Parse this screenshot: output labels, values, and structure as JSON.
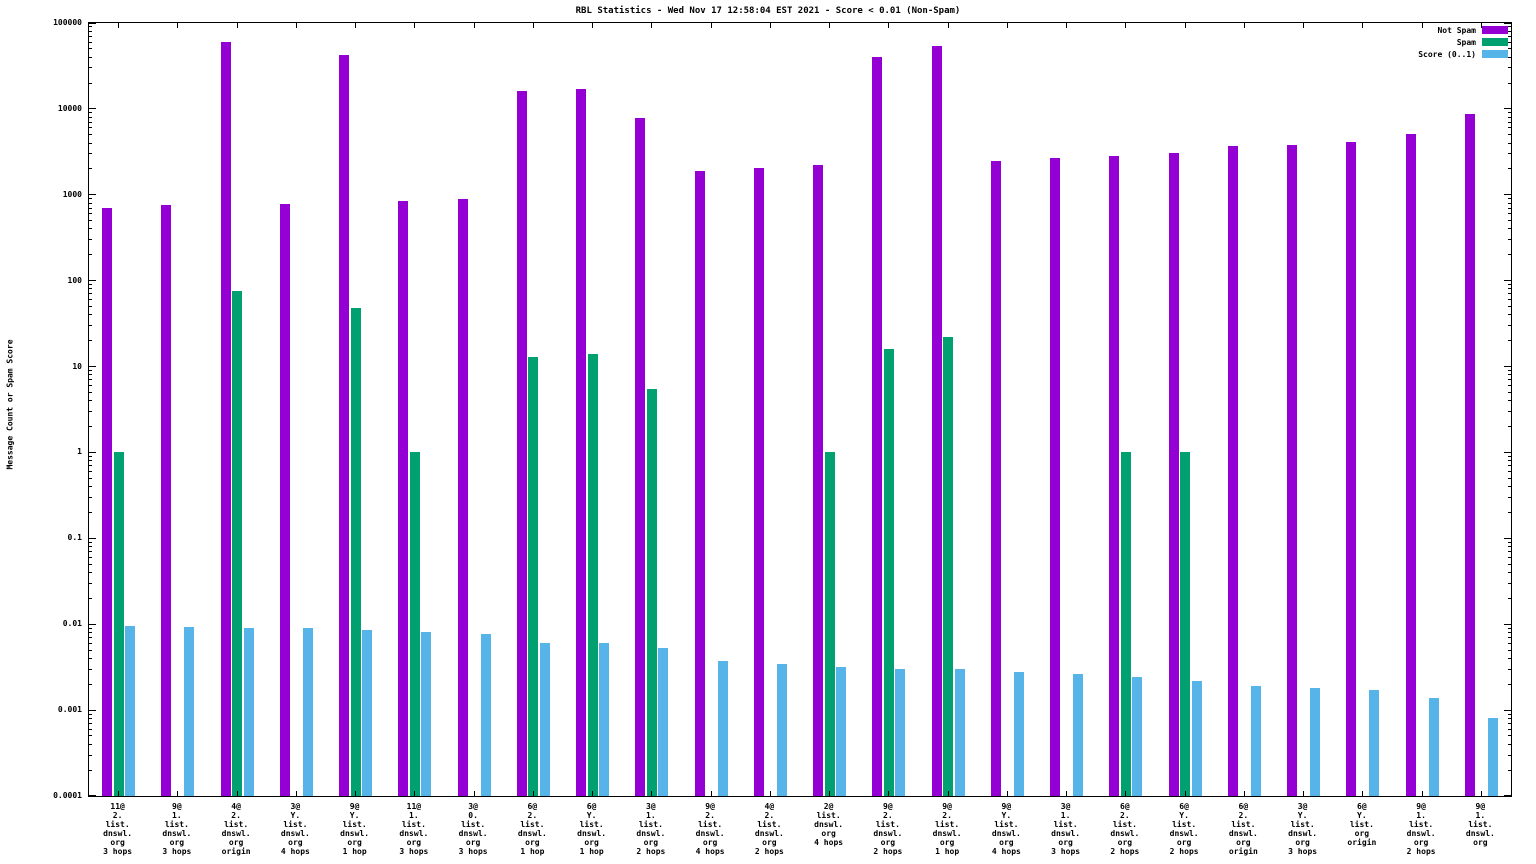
{
  "chart_data": {
    "type": "bar",
    "title": "RBL Statistics - Wed Nov 17 12:58:04 EST 2021 - Score < 0.01 (Non-Spam)",
    "ylabel": "Message Count or Spam Score",
    "yscale": "log",
    "ylim": [
      0.0001,
      100000
    ],
    "ytick_labels": [
      "0.0001",
      "0.001",
      "0.01",
      "0.1",
      "1",
      "10",
      "100",
      "1000",
      "10000",
      "100000"
    ],
    "grid": false,
    "legend_position": "top-right",
    "legend": [
      {
        "name": "Not Spam",
        "color": "#9400d3"
      },
      {
        "name": "Spam",
        "color": "#00a070"
      },
      {
        "name": "Score (0..1)",
        "color": "#56b4e9"
      }
    ],
    "categories": [
      [
        "11@",
        "2.",
        "list.",
        "dnswl.",
        "org",
        "3 hops"
      ],
      [
        "9@",
        "1.",
        "list.",
        "dnswl.",
        "org",
        "3 hops"
      ],
      [
        "4@",
        "2.",
        "list.",
        "dnswl.",
        "org",
        "origin"
      ],
      [
        "3@",
        "Y.",
        "list.",
        "dnswl.",
        "org",
        "4 hops"
      ],
      [
        "9@",
        "Y.",
        "list.",
        "dnswl.",
        "org",
        "1 hop"
      ],
      [
        "11@",
        "1.",
        "list.",
        "dnswl.",
        "org",
        "3 hops"
      ],
      [
        "3@",
        "0.",
        "list.",
        "dnswl.",
        "org",
        "3 hops"
      ],
      [
        "6@",
        "2.",
        "list.",
        "dnswl.",
        "org",
        "1 hop"
      ],
      [
        "6@",
        "Y.",
        "list.",
        "dnswl.",
        "org",
        "1 hop"
      ],
      [
        "3@",
        "1.",
        "list.",
        "dnswl.",
        "org",
        "2 hops"
      ],
      [
        "9@",
        "2.",
        "list.",
        "dnswl.",
        "org",
        "4 hops"
      ],
      [
        "4@",
        "2.",
        "list.",
        "dnswl.",
        "org",
        "2 hops"
      ],
      [
        "2@",
        "list.",
        "dnswl.",
        "org",
        "4 hops"
      ],
      [
        "9@",
        "2.",
        "list.",
        "dnswl.",
        "org",
        "2 hops"
      ],
      [
        "9@",
        "2.",
        "list.",
        "dnswl.",
        "org",
        "1 hop"
      ],
      [
        "9@",
        "Y.",
        "list.",
        "dnswl.",
        "org",
        "4 hops"
      ],
      [
        "3@",
        "1.",
        "list.",
        "dnswl.",
        "org",
        "3 hops"
      ],
      [
        "6@",
        "2.",
        "list.",
        "dnswl.",
        "org",
        "2 hops"
      ],
      [
        "6@",
        "Y.",
        "list.",
        "dnswl.",
        "org",
        "2 hops"
      ],
      [
        "6@",
        "2.",
        "list.",
        "dnswl.",
        "org",
        "origin"
      ],
      [
        "3@",
        "Y.",
        "list.",
        "dnswl.",
        "org",
        "3 hops"
      ],
      [
        "6@",
        "Y.",
        "list.",
        "org",
        "origin"
      ],
      [
        "9@",
        "1.",
        "list.",
        "dnswl.",
        "org",
        "2 hops"
      ],
      [
        "9@",
        "1.",
        "list.",
        "dnswl.",
        "org"
      ]
    ],
    "series": [
      {
        "name": "Not Spam",
        "color": "#9400d3",
        "values": [
          700,
          760,
          60000,
          780,
          42000,
          850,
          900,
          16000,
          17000,
          7800,
          1900,
          2050,
          2200,
          40000,
          54000,
          2500,
          2700,
          2850,
          3100,
          3700,
          3750,
          4100,
          5100,
          8800
        ]
      },
      {
        "name": "Spam",
        "color": "#00a070",
        "values": [
          1,
          null,
          75,
          null,
          48,
          1,
          null,
          13,
          14,
          5.5,
          null,
          null,
          1,
          16,
          22,
          null,
          null,
          1,
          1,
          null,
          null,
          null,
          null,
          null
        ]
      },
      {
        "name": "Score (0..1)",
        "color": "#56b4e9",
        "values": [
          0.0095,
          0.0092,
          0.0091,
          0.009,
          0.0086,
          0.0081,
          0.0077,
          0.0061,
          0.006,
          0.0053,
          0.0037,
          0.0034,
          0.0032,
          0.003,
          0.003,
          0.0028,
          0.0026,
          0.0024,
          0.0022,
          0.0019,
          0.0018,
          0.0017,
          0.0014,
          0.0008
        ]
      }
    ]
  }
}
